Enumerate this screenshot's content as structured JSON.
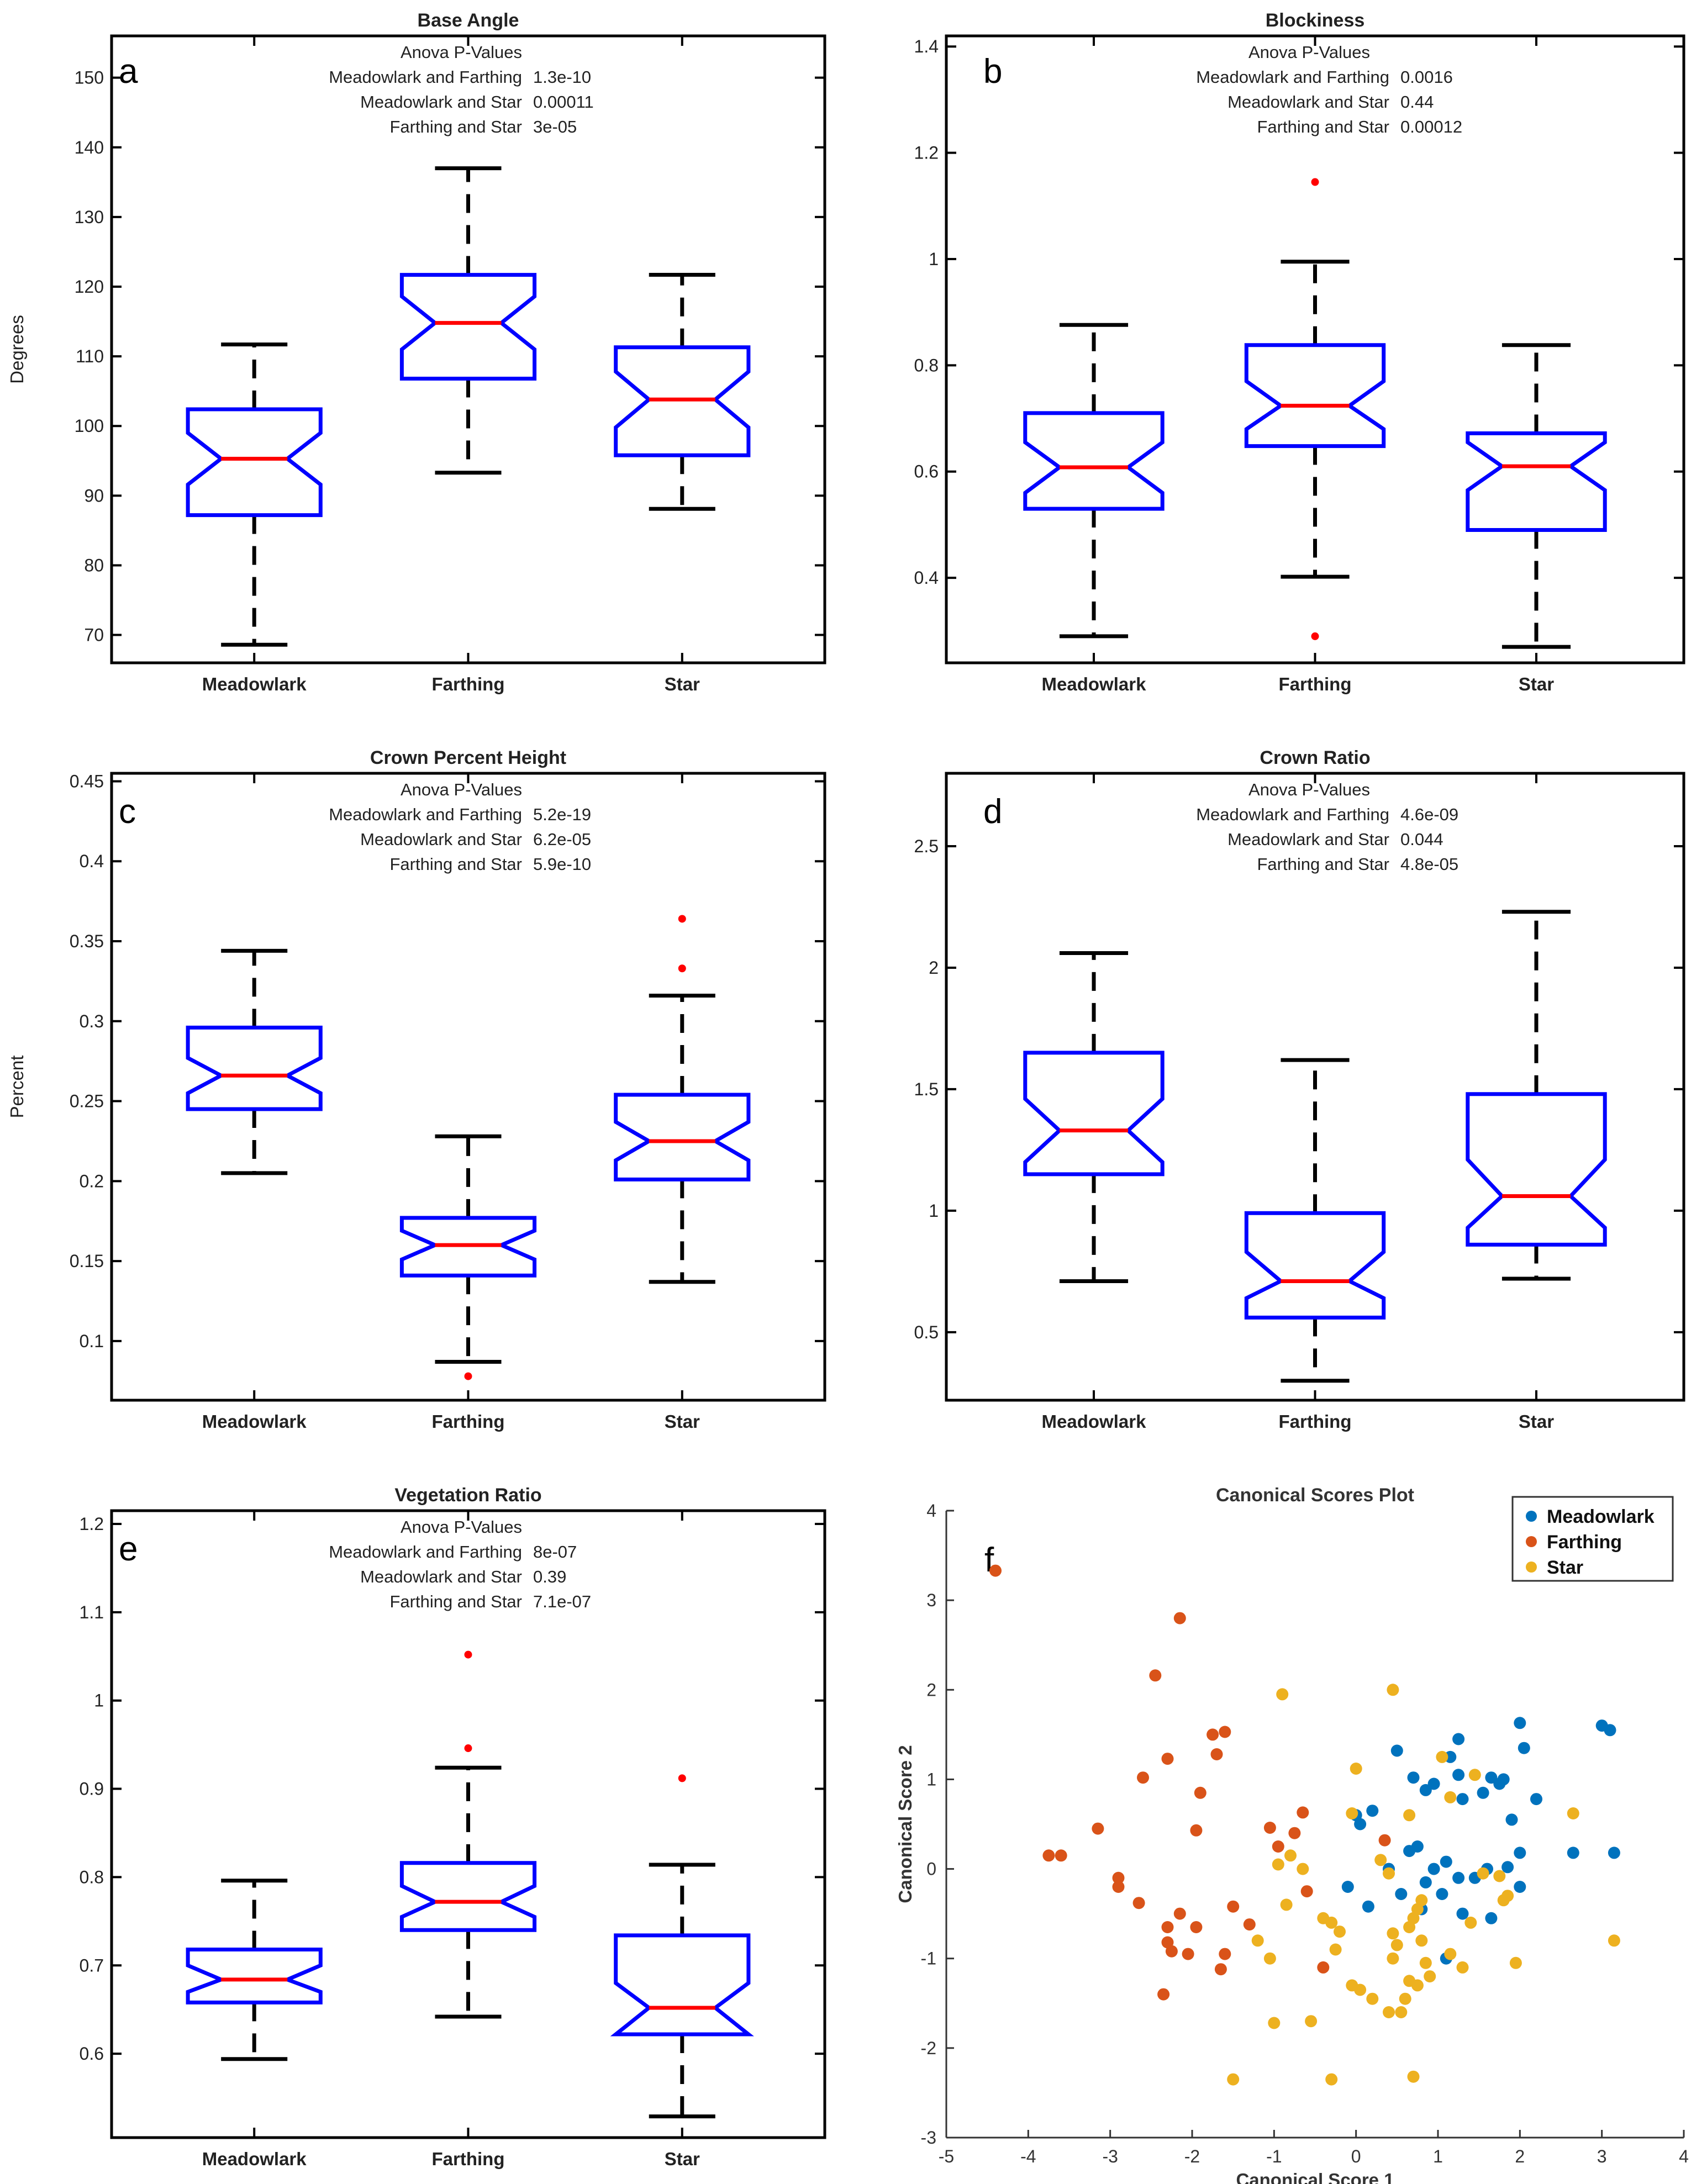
{
  "colors": {
    "box": "#0000ff",
    "median": "#ff0000",
    "whisker": "#000000",
    "outlier": "#ff0000",
    "meadowlark": "#0072bd",
    "farthing": "#d95319",
    "star": "#edb120"
  },
  "chart_data": [
    {
      "type": "boxplot",
      "label": "a",
      "title": "Base Angle",
      "ylabel": "Degrees",
      "xlabel": "",
      "ylim": [
        66,
        156
      ],
      "ticks": [
        70,
        80,
        90,
        100,
        110,
        120,
        130,
        140,
        150
      ],
      "tick_labels": [
        "70",
        "80",
        "90",
        "100",
        "110",
        "120",
        "130",
        "140",
        "150"
      ],
      "categories": [
        "Meadowlark",
        "Farthing",
        "Star"
      ],
      "stats_header": "Anova P-Values",
      "stats": [
        {
          "pair": "Meadowlark and Farthing",
          "value": "1.3e-10"
        },
        {
          "pair": "Meadowlark and Star",
          "value": "0.00011"
        },
        {
          "pair": "Farthing and Star",
          "value": "3e-05"
        }
      ],
      "boxes": [
        {
          "q1": 87.2,
          "median": 95.3,
          "q3": 102.4,
          "notch_lo": 91.6,
          "notch_hi": 99.0,
          "whisker_lo": 68.6,
          "whisker_hi": 111.7,
          "outliers": []
        },
        {
          "q1": 106.8,
          "median": 114.8,
          "q3": 121.7,
          "notch_lo": 111.0,
          "notch_hi": 118.6,
          "whisker_lo": 93.3,
          "whisker_hi": 137.0,
          "outliers": []
        },
        {
          "q1": 95.8,
          "median": 103.8,
          "q3": 111.3,
          "notch_lo": 99.8,
          "notch_hi": 107.8,
          "whisker_lo": 88.1,
          "whisker_hi": 121.7,
          "outliers": []
        }
      ]
    },
    {
      "type": "boxplot",
      "label": "b",
      "title": "Blockiness",
      "ylabel": "",
      "xlabel": "",
      "ylim": [
        0.24,
        1.42
      ],
      "ticks": [
        0.4,
        0.6,
        0.8,
        1.0,
        1.2,
        1.4
      ],
      "tick_labels": [
        "0.4",
        "0.6",
        "0.8",
        "1",
        "1.2",
        "1.4"
      ],
      "categories": [
        "Meadowlark",
        "Farthing",
        "Star"
      ],
      "stats_header": "Anova P-Values",
      "stats": [
        {
          "pair": "Meadowlark and Farthing",
          "value": "0.0016"
        },
        {
          "pair": "Meadowlark and Star",
          "value": "0.44"
        },
        {
          "pair": "Farthing and Star",
          "value": "0.00012"
        }
      ],
      "boxes": [
        {
          "q1": 0.53,
          "median": 0.608,
          "q3": 0.71,
          "notch_lo": 0.56,
          "notch_hi": 0.655,
          "whisker_lo": 0.29,
          "whisker_hi": 0.876,
          "outliers": []
        },
        {
          "q1": 0.648,
          "median": 0.724,
          "q3": 0.838,
          "notch_lo": 0.68,
          "notch_hi": 0.77,
          "whisker_lo": 0.402,
          "whisker_hi": 0.995,
          "outliers": [
            1.145,
            0.29
          ]
        },
        {
          "q1": 0.49,
          "median": 0.61,
          "q3": 0.672,
          "notch_lo": 0.565,
          "notch_hi": 0.655,
          "whisker_lo": 0.27,
          "whisker_hi": 0.838,
          "outliers": []
        }
      ]
    },
    {
      "type": "boxplot",
      "label": "c",
      "title": "Crown Percent Height",
      "ylabel": "Percent",
      "xlabel": "",
      "ylim": [
        0.063,
        0.455
      ],
      "ticks": [
        0.1,
        0.15,
        0.2,
        0.25,
        0.3,
        0.35,
        0.4,
        0.45
      ],
      "tick_labels": [
        "0.1",
        "0.15",
        "0.2",
        "0.25",
        "0.3",
        "0.35",
        "0.4",
        "0.45"
      ],
      "categories": [
        "Meadowlark",
        "Farthing",
        "Star"
      ],
      "stats_header": "Anova P-Values",
      "stats": [
        {
          "pair": "Meadowlark and Farthing",
          "value": "5.2e-19"
        },
        {
          "pair": "Meadowlark and Star",
          "value": "6.2e-05"
        },
        {
          "pair": "Farthing and Star",
          "value": "5.9e-10"
        }
      ],
      "boxes": [
        {
          "q1": 0.245,
          "median": 0.266,
          "q3": 0.296,
          "notch_lo": 0.255,
          "notch_hi": 0.277,
          "whisker_lo": 0.205,
          "whisker_hi": 0.344,
          "outliers": []
        },
        {
          "q1": 0.141,
          "median": 0.16,
          "q3": 0.177,
          "notch_lo": 0.151,
          "notch_hi": 0.169,
          "whisker_lo": 0.087,
          "whisker_hi": 0.228,
          "outliers": [
            0.078
          ]
        },
        {
          "q1": 0.201,
          "median": 0.225,
          "q3": 0.254,
          "notch_lo": 0.213,
          "notch_hi": 0.237,
          "whisker_lo": 0.137,
          "whisker_hi": 0.316,
          "outliers": [
            0.364,
            0.333
          ]
        }
      ]
    },
    {
      "type": "boxplot",
      "label": "d",
      "title": "Crown Ratio",
      "ylabel": "",
      "xlabel": "",
      "ylim": [
        0.22,
        2.8
      ],
      "ticks": [
        0.5,
        1.0,
        1.5,
        2.0,
        2.5
      ],
      "tick_labels": [
        "0.5",
        "1",
        "1.5",
        "2",
        "2.5"
      ],
      "categories": [
        "Meadowlark",
        "Farthing",
        "Star"
      ],
      "stats_header": "Anova P-Values",
      "stats": [
        {
          "pair": "Meadowlark and Farthing",
          "value": "4.6e-09"
        },
        {
          "pair": "Meadowlark and Star",
          "value": "0.044"
        },
        {
          "pair": "Farthing and Star",
          "value": "4.8e-05"
        }
      ],
      "boxes": [
        {
          "q1": 1.15,
          "median": 1.33,
          "q3": 1.65,
          "notch_lo": 1.2,
          "notch_hi": 1.46,
          "whisker_lo": 0.71,
          "whisker_hi": 2.06,
          "outliers": []
        },
        {
          "q1": 0.56,
          "median": 0.71,
          "q3": 0.99,
          "notch_lo": 0.64,
          "notch_hi": 0.83,
          "whisker_lo": 0.3,
          "whisker_hi": 1.62,
          "outliers": []
        },
        {
          "q1": 0.86,
          "median": 1.06,
          "q3": 1.48,
          "notch_lo": 0.93,
          "notch_hi": 1.21,
          "whisker_lo": 0.72,
          "whisker_hi": 2.23,
          "outliers": []
        }
      ]
    },
    {
      "type": "boxplot",
      "label": "e",
      "title": "Vegetation Ratio",
      "ylabel": "",
      "xlabel": "",
      "ylim": [
        0.505,
        1.215
      ],
      "ticks": [
        0.6,
        0.7,
        0.8,
        0.9,
        1.0,
        1.1,
        1.2
      ],
      "tick_labels": [
        "0.6",
        "0.7",
        "0.8",
        "0.9",
        "1",
        "1.1",
        "1.2"
      ],
      "categories": [
        "Meadowlark",
        "Farthing",
        "Star"
      ],
      "stats_header": "Anova P-Values",
      "stats": [
        {
          "pair": "Meadowlark and Farthing",
          "value": "8e-07"
        },
        {
          "pair": "Meadowlark and Star",
          "value": "0.39"
        },
        {
          "pair": "Farthing and Star",
          "value": "7.1e-07"
        }
      ],
      "boxes": [
        {
          "q1": 0.658,
          "median": 0.684,
          "q3": 0.718,
          "notch_lo": 0.67,
          "notch_hi": 0.7,
          "whisker_lo": 0.594,
          "whisker_hi": 0.796,
          "outliers": []
        },
        {
          "q1": 0.74,
          "median": 0.772,
          "q3": 0.816,
          "notch_lo": 0.755,
          "notch_hi": 0.79,
          "whisker_lo": 0.642,
          "whisker_hi": 0.924,
          "outliers": [
            1.052,
            0.946
          ]
        },
        {
          "q1": 0.622,
          "median": 0.652,
          "q3": 0.734,
          "notch_lo": 0.622,
          "notch_hi": 0.68,
          "whisker_lo": 0.529,
          "whisker_hi": 0.814,
          "outliers": [
            0.912
          ]
        }
      ]
    },
    {
      "type": "scatter",
      "label": "f",
      "title": "Canonical Scores Plot",
      "xlabel": "Canonical Score 1",
      "ylabel": "Canonical Score 2",
      "xlim": [
        -5,
        4
      ],
      "ylim": [
        -3,
        4
      ],
      "xticks": [
        -5,
        -4,
        -3,
        -2,
        -1,
        0,
        1,
        2,
        3,
        4
      ],
      "yticks": [
        -3,
        -2,
        -1,
        0,
        1,
        2,
        3,
        4
      ],
      "legend_position": "top-right",
      "series": [
        {
          "name": "Meadowlark",
          "points": [
            [
              2.0,
              1.63
            ],
            [
              2.05,
              1.35
            ],
            [
              2.2,
              0.78
            ],
            [
              3.0,
              1.6
            ],
            [
              3.1,
              1.55
            ],
            [
              3.15,
              0.18
            ],
            [
              2.65,
              0.18
            ],
            [
              1.25,
              1.45
            ],
            [
              1.15,
              1.25
            ],
            [
              1.25,
              1.05
            ],
            [
              0.95,
              0.95
            ],
            [
              0.85,
              0.88
            ],
            [
              0.7,
              1.02
            ],
            [
              0.5,
              1.32
            ],
            [
              0.2,
              0.65
            ],
            [
              0.0,
              0.6
            ],
            [
              0.05,
              0.5
            ],
            [
              1.55,
              0.85
            ],
            [
              1.75,
              0.95
            ],
            [
              1.65,
              1.02
            ],
            [
              1.8,
              1.0
            ],
            [
              1.9,
              0.55
            ],
            [
              2.0,
              0.18
            ],
            [
              1.3,
              0.78
            ],
            [
              0.65,
              0.2
            ],
            [
              0.75,
              0.25
            ],
            [
              0.4,
              0.0
            ],
            [
              0.95,
              0.0
            ],
            [
              1.1,
              0.08
            ],
            [
              1.45,
              -0.1
            ],
            [
              1.6,
              0.0
            ],
            [
              1.85,
              0.02
            ],
            [
              2.0,
              -0.2
            ],
            [
              1.25,
              -0.1
            ],
            [
              1.05,
              -0.28
            ],
            [
              0.85,
              -0.15
            ],
            [
              0.8,
              -0.45
            ],
            [
              0.55,
              -0.28
            ],
            [
              0.15,
              -0.42
            ],
            [
              -0.1,
              -0.2
            ],
            [
              1.3,
              -0.5
            ],
            [
              1.65,
              -0.55
            ],
            [
              1.1,
              -1.0
            ]
          ]
        },
        {
          "name": "Farthing",
          "points": [
            [
              -4.4,
              3.33
            ],
            [
              -2.15,
              2.8
            ],
            [
              -2.45,
              2.16
            ],
            [
              -2.3,
              1.23
            ],
            [
              -1.75,
              1.5
            ],
            [
              -1.6,
              1.53
            ],
            [
              -1.7,
              1.28
            ],
            [
              -2.6,
              1.02
            ],
            [
              -1.9,
              0.85
            ],
            [
              -1.95,
              0.43
            ],
            [
              -3.75,
              0.15
            ],
            [
              -3.6,
              0.15
            ],
            [
              -3.15,
              0.45
            ],
            [
              -2.9,
              -0.1
            ],
            [
              -2.9,
              -0.2
            ],
            [
              -2.65,
              -0.38
            ],
            [
              -2.15,
              -0.5
            ],
            [
              -2.3,
              -0.65
            ],
            [
              -1.95,
              -0.65
            ],
            [
              -1.5,
              -0.42
            ],
            [
              -1.3,
              -0.62
            ],
            [
              -2.3,
              -0.82
            ],
            [
              -2.25,
              -0.92
            ],
            [
              -2.05,
              -0.95
            ],
            [
              -1.6,
              -0.95
            ],
            [
              -1.65,
              -1.12
            ],
            [
              -2.35,
              -1.4
            ],
            [
              -1.05,
              0.46
            ],
            [
              -0.65,
              0.63
            ],
            [
              -0.75,
              0.4
            ],
            [
              -0.95,
              0.25
            ],
            [
              -0.6,
              -0.25
            ],
            [
              -0.4,
              -1.1
            ],
            [
              0.35,
              0.32
            ]
          ]
        },
        {
          "name": "Star",
          "points": [
            [
              0.45,
              2.0
            ],
            [
              -0.9,
              1.95
            ],
            [
              0.0,
              1.12
            ],
            [
              -0.05,
              0.62
            ],
            [
              0.65,
              0.6
            ],
            [
              1.05,
              1.25
            ],
            [
              1.45,
              1.05
            ],
            [
              2.65,
              0.62
            ],
            [
              1.15,
              0.8
            ],
            [
              -0.8,
              0.15
            ],
            [
              -0.65,
              0.0
            ],
            [
              -0.85,
              -0.4
            ],
            [
              -0.95,
              0.05
            ],
            [
              0.3,
              0.1
            ],
            [
              0.4,
              -0.05
            ],
            [
              1.55,
              -0.05
            ],
            [
              1.75,
              -0.08
            ],
            [
              1.85,
              -0.3
            ],
            [
              -0.4,
              -0.55
            ],
            [
              -0.3,
              -0.6
            ],
            [
              -0.2,
              -0.7
            ],
            [
              -1.2,
              -0.8
            ],
            [
              -1.05,
              -1.0
            ],
            [
              -0.25,
              -0.9
            ],
            [
              0.45,
              -0.72
            ],
            [
              0.5,
              -0.85
            ],
            [
              0.45,
              -1.0
            ],
            [
              0.65,
              -0.65
            ],
            [
              0.7,
              -0.55
            ],
            [
              0.75,
              -0.45
            ],
            [
              0.8,
              -0.35
            ],
            [
              0.8,
              -0.8
            ],
            [
              0.85,
              -1.05
            ],
            [
              0.9,
              -1.2
            ],
            [
              0.65,
              -1.25
            ],
            [
              0.6,
              -1.45
            ],
            [
              0.75,
              -1.3
            ],
            [
              -0.05,
              -1.3
            ],
            [
              0.05,
              -1.35
            ],
            [
              0.2,
              -1.45
            ],
            [
              0.55,
              -1.6
            ],
            [
              0.4,
              -1.6
            ],
            [
              -1.0,
              -1.72
            ],
            [
              -0.55,
              -1.7
            ],
            [
              -1.5,
              -2.35
            ],
            [
              -0.3,
              -2.35
            ],
            [
              0.7,
              -2.32
            ],
            [
              1.95,
              -1.05
            ],
            [
              3.15,
              -0.8
            ],
            [
              1.3,
              -1.1
            ],
            [
              1.15,
              -0.95
            ],
            [
              1.4,
              -0.6
            ],
            [
              1.8,
              -0.35
            ]
          ]
        }
      ]
    }
  ]
}
